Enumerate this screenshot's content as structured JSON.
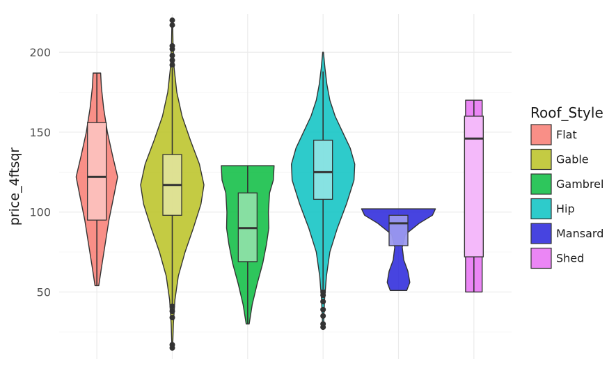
{
  "chart_data": {
    "type": "violin",
    "title": "",
    "xlabel": "",
    "ylabel": "price_4ftsqr",
    "ylim": [
      8,
      224
    ],
    "yticks": [
      50,
      100,
      150,
      200
    ],
    "grid": true,
    "legend": {
      "title": "Roof_Style",
      "position": "right"
    },
    "categories": [
      "Flat",
      "Gable",
      "Gambrel",
      "Hip",
      "Mansard",
      "Shed"
    ],
    "series": [
      {
        "name": "Flat",
        "color": "#F8766D",
        "range": [
          54,
          187
        ],
        "box": {
          "q1": 95,
          "median": 122,
          "q3": 156,
          "lower": 54,
          "upper": 187
        },
        "density": [
          [
            54,
            0.05
          ],
          [
            65,
            0.12
          ],
          [
            80,
            0.22
          ],
          [
            95,
            0.32
          ],
          [
            110,
            0.45
          ],
          [
            122,
            0.55
          ],
          [
            135,
            0.42
          ],
          [
            150,
            0.28
          ],
          [
            165,
            0.18
          ],
          [
            178,
            0.12
          ],
          [
            187,
            0.1
          ]
        ],
        "outliers": []
      },
      {
        "name": "Gable",
        "color": "#B7BF1A",
        "range": [
          15,
          220
        ],
        "box": {
          "q1": 98,
          "median": 117,
          "q3": 136,
          "lower": 42,
          "upper": 190
        },
        "density": [
          [
            15,
            0.01
          ],
          [
            30,
            0.03
          ],
          [
            45,
            0.07
          ],
          [
            60,
            0.16
          ],
          [
            75,
            0.34
          ],
          [
            90,
            0.56
          ],
          [
            105,
            0.76
          ],
          [
            117,
            0.84
          ],
          [
            130,
            0.72
          ],
          [
            145,
            0.48
          ],
          [
            160,
            0.26
          ],
          [
            175,
            0.12
          ],
          [
            190,
            0.05
          ],
          [
            205,
            0.02
          ],
          [
            220,
            0.01
          ]
        ],
        "outliers": [
          15,
          17,
          34,
          38,
          41,
          192,
          195,
          198,
          202,
          204,
          217,
          220
        ]
      },
      {
        "name": "Gambrel",
        "color": "#00BA38",
        "range": [
          30,
          129
        ],
        "box": {
          "q1": 69,
          "median": 90,
          "q3": 112,
          "lower": 30,
          "upper": 129
        },
        "density": [
          [
            30,
            0.04
          ],
          [
            42,
            0.12
          ],
          [
            55,
            0.25
          ],
          [
            68,
            0.4
          ],
          [
            80,
            0.5
          ],
          [
            90,
            0.56
          ],
          [
            100,
            0.55
          ],
          [
            112,
            0.58
          ],
          [
            120,
            0.68
          ],
          [
            129,
            0.7
          ]
        ],
        "outliers": []
      },
      {
        "name": "Hip",
        "color": "#00C0C0",
        "range": [
          28,
          200
        ],
        "box": {
          "q1": 108,
          "median": 125,
          "q3": 145,
          "lower": 52,
          "upper": 188
        },
        "density": [
          [
            28,
            0.01
          ],
          [
            45,
            0.04
          ],
          [
            60,
            0.09
          ],
          [
            75,
            0.18
          ],
          [
            90,
            0.38
          ],
          [
            105,
            0.62
          ],
          [
            120,
            0.82
          ],
          [
            130,
            0.84
          ],
          [
            140,
            0.72
          ],
          [
            150,
            0.52
          ],
          [
            160,
            0.32
          ],
          [
            170,
            0.18
          ],
          [
            180,
            0.1
          ],
          [
            190,
            0.05
          ],
          [
            200,
            0.01
          ]
        ],
        "outliers": [
          28,
          30,
          35,
          39,
          44,
          48,
          50
        ]
      },
      {
        "name": "Mansard",
        "color": "#1E1BD9",
        "range": [
          51,
          102
        ],
        "box": {
          "q1": 79,
          "median": 93,
          "q3": 98,
          "lower": 79,
          "upper": 98
        },
        "density": [
          [
            51,
            0.22
          ],
          [
            56,
            0.3
          ],
          [
            63,
            0.25
          ],
          [
            70,
            0.14
          ],
          [
            78,
            0.1
          ],
          [
            86,
            0.18
          ],
          [
            93,
            0.55
          ],
          [
            98,
            0.9
          ],
          [
            102,
            0.98
          ]
        ],
        "outliers": []
      },
      {
        "name": "Shed",
        "color": "#E76BF3",
        "range": [
          50,
          170
        ],
        "box": {
          "q1": 72,
          "median": 146,
          "q3": 160,
          "lower": 50,
          "upper": 170
        },
        "density": [
          [
            50,
            0.22
          ],
          [
            170,
            0.22
          ]
        ],
        "outliers": []
      }
    ]
  }
}
